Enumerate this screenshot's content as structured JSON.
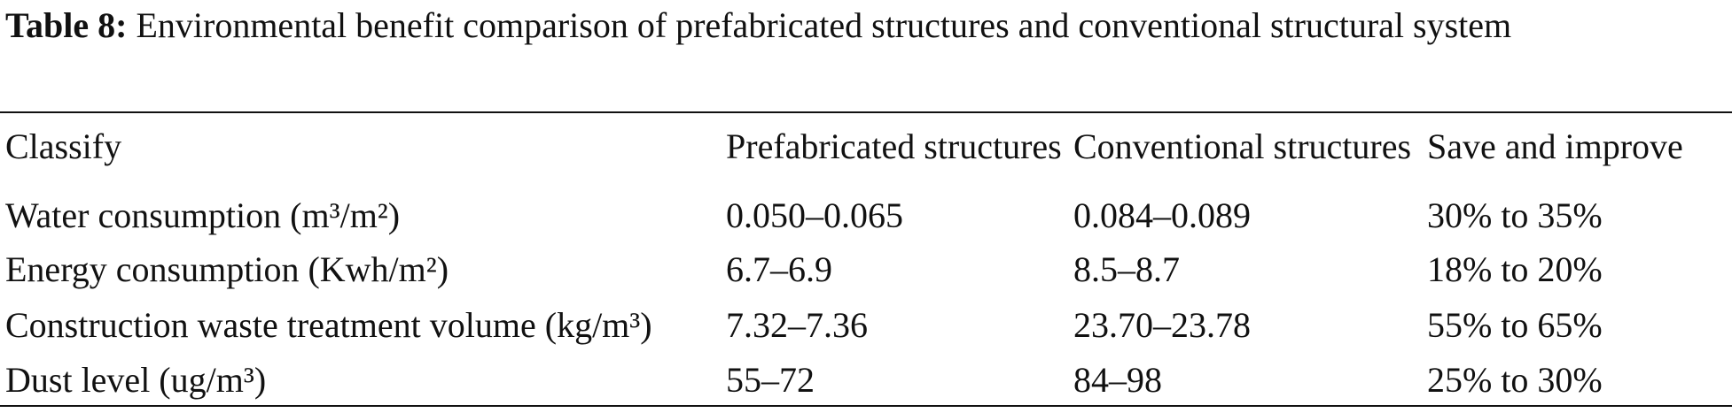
{
  "title": {
    "label": "Table 8:",
    "text": "Environmental benefit comparison of prefabricated structures and conventional structural system"
  },
  "table": {
    "header": [
      "Classify",
      "Prefabricated structures",
      "Conventional structures",
      "Save and improve"
    ],
    "rows": [
      [
        "Water consumption (m³/m²)",
        "0.050–0.065",
        "0.084–0.089",
        "30% to 35%"
      ],
      [
        "Energy consumption (Kwh/m²)",
        "6.7–6.9",
        "8.5–8.7",
        "18% to 20%"
      ],
      [
        "Construction waste treatment volume (kg/m³)",
        "7.32–7.36",
        "23.70–23.78",
        "55% to 65%"
      ],
      [
        "Dust level (ug/m³)",
        "55–72",
        "84–98",
        "25% to 30%"
      ]
    ]
  }
}
